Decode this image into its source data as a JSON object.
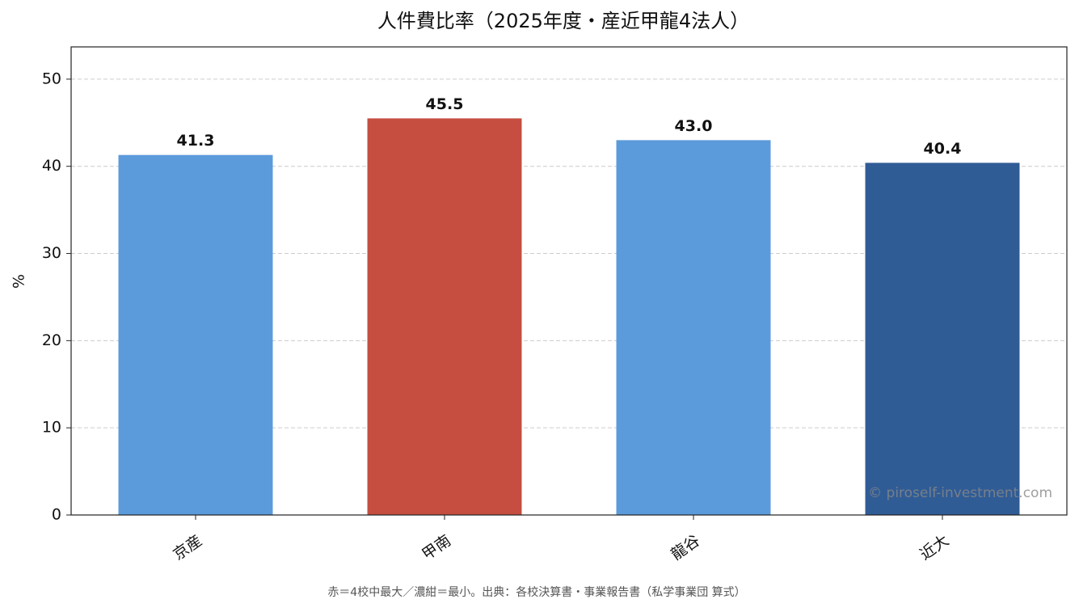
{
  "chart_data": {
    "type": "bar",
    "title": "人件費比率（2025年度・産近甲龍4法人）",
    "y_label": "%",
    "categories": [
      "京産",
      "甲南",
      "龍谷",
      "近大"
    ],
    "values": [
      41.3,
      45.5,
      43.0,
      40.4
    ],
    "value_labels": [
      "41.3",
      "45.5",
      "43.0",
      "40.4"
    ],
    "colors": [
      "#5b9bdb",
      "#c54e40",
      "#5b9bdb",
      "#305c96"
    ],
    "ylim": [
      0,
      53.7
    ],
    "yticks": [
      0,
      10,
      20,
      30,
      40,
      50
    ],
    "grid": true,
    "watermark": "© piroself-investment.com",
    "note": "赤＝4校中最大／濃紺＝最小。出典：各校決算書・事業報告書（私学事業団 算式）"
  }
}
